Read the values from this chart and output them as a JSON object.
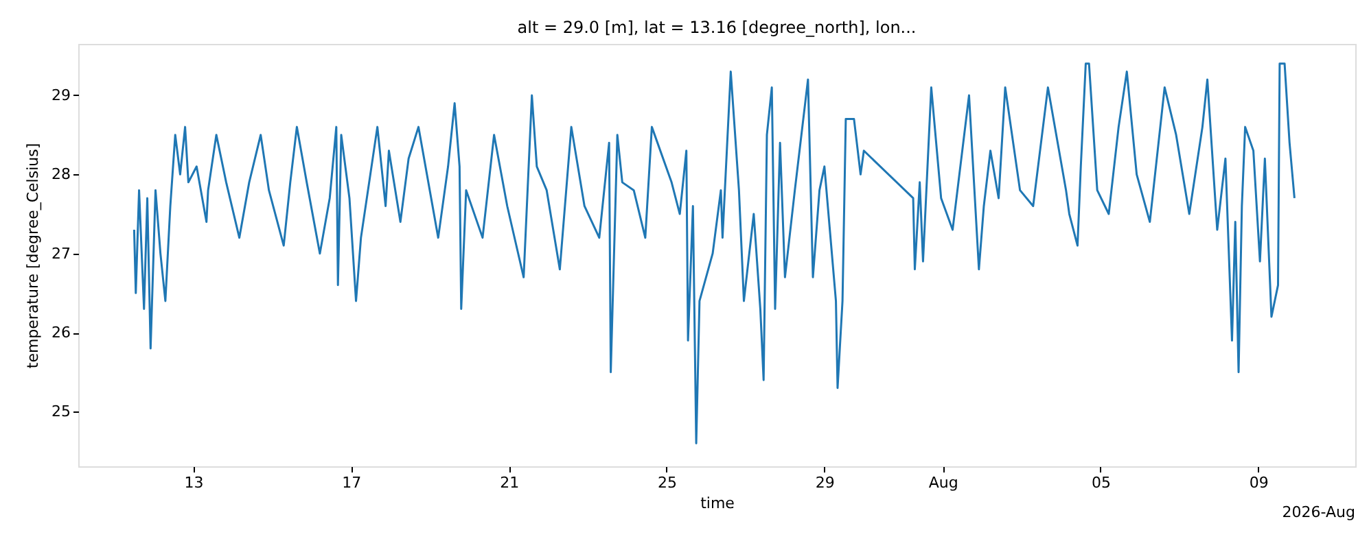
{
  "chart_data": {
    "type": "line",
    "title": "alt = 29.0 [m], lat = 13.16 [degree_north], lon...",
    "xlabel": "time",
    "ylabel": "temperature [degree_Celsius]",
    "x": [
      "2026-07-11T12:00",
      "2026-07-11T13:00",
      "2026-07-11T15:00",
      "2026-07-11T18:00",
      "2026-07-11T20:00",
      "2026-07-11T22:00",
      "2026-07-12T01:00",
      "2026-07-12T04:00",
      "2026-07-12T07:00",
      "2026-07-12T10:00",
      "2026-07-12T13:00",
      "2026-07-12T16:00",
      "2026-07-12T19:00",
      "2026-07-12T21:00",
      "2026-07-13T02:00",
      "2026-07-13T08:00",
      "2026-07-13T09:00",
      "2026-07-13T14:00",
      "2026-07-13T20:00",
      "2026-07-14T04:00",
      "2026-07-14T10:00",
      "2026-07-14T17:00",
      "2026-07-14T22:00",
      "2026-07-15T07:00",
      "2026-07-15T11:00",
      "2026-07-15T15:00",
      "2026-07-15T21:00",
      "2026-07-16T05:00",
      "2026-07-16T11:00",
      "2026-07-16T15:00",
      "2026-07-16T16:00",
      "2026-07-16T18:00",
      "2026-07-16T23:00",
      "2026-07-17T03:00",
      "2026-07-17T06:00",
      "2026-07-17T16:00",
      "2026-07-17T21:00",
      "2026-07-17T23:00",
      "2026-07-18T06:00",
      "2026-07-18T11:00",
      "2026-07-18T17:00",
      "2026-07-19T05:00",
      "2026-07-19T11:00",
      "2026-07-19T15:00",
      "2026-07-19T18:00",
      "2026-07-19T19:00",
      "2026-07-19T22:00",
      "2026-07-20T08:00",
      "2026-07-20T15:00",
      "2026-07-20T23:00",
      "2026-07-21T09:00",
      "2026-07-21T14:00",
      "2026-07-21T17:00",
      "2026-07-21T23:00",
      "2026-07-22T07:00",
      "2026-07-22T14:00",
      "2026-07-22T22:00",
      "2026-07-23T07:00",
      "2026-07-23T13:00",
      "2026-07-23T14:00",
      "2026-07-23T18:00",
      "2026-07-23T21:00",
      "2026-07-24T04:00",
      "2026-07-24T11:00",
      "2026-07-24T15:00",
      "2026-07-25T03:00",
      "2026-07-25T08:00",
      "2026-07-25T12:00",
      "2026-07-25T13:00",
      "2026-07-25T16:00",
      "2026-07-25T18:00",
      "2026-07-25T20:00",
      "2026-07-26T04:00",
      "2026-07-26T09:00",
      "2026-07-26T10:00",
      "2026-07-26T15:00",
      "2026-07-26T20:00",
      "2026-07-26T23:00",
      "2026-07-27T05:00",
      "2026-07-27T09:00",
      "2026-07-27T11:00",
      "2026-07-27T13:00",
      "2026-07-27T16:00",
      "2026-07-27T18:00",
      "2026-07-27T21:00",
      "2026-07-28T00:00",
      "2026-07-28T06:00",
      "2026-07-28T14:00",
      "2026-07-28T17:00",
      "2026-07-28T21:00",
      "2026-07-29T00:00",
      "2026-07-29T07:00",
      "2026-07-29T08:00",
      "2026-07-29T11:00",
      "2026-07-29T13:00",
      "2026-07-29T18:00",
      "2026-07-29T22:00",
      "2026-07-30T00:00",
      "2026-07-31T06:00",
      "2026-07-31T07:00",
      "2026-07-31T10:00",
      "2026-07-31T12:00",
      "2026-07-31T17:00",
      "2026-07-31T23:00",
      "2026-08-01T06:00",
      "2026-08-01T16:00",
      "2026-08-01T22:00",
      "2026-08-02T01:00",
      "2026-08-02T05:00",
      "2026-08-02T10:00",
      "2026-08-02T14:00",
      "2026-08-02T23:00",
      "2026-08-03T07:00",
      "2026-08-03T16:00",
      "2026-08-04T03:00",
      "2026-08-04T05:00",
      "2026-08-04T10:00",
      "2026-08-04T12:00",
      "2026-08-04T15:00",
      "2026-08-04T17:00",
      "2026-08-04T22:00",
      "2026-08-05T05:00",
      "2026-08-05T11:00",
      "2026-08-05T16:00",
      "2026-08-05T22:00",
      "2026-08-06T06:00",
      "2026-08-06T15:00",
      "2026-08-06T22:00",
      "2026-08-07T06:00",
      "2026-08-07T14:00",
      "2026-08-07T17:00",
      "2026-08-07T23:00",
      "2026-08-08T04:00",
      "2026-08-08T08:00",
      "2026-08-08T10:00",
      "2026-08-08T12:00",
      "2026-08-08T14:00",
      "2026-08-08T16:00",
      "2026-08-08T21:00",
      "2026-08-09T01:00",
      "2026-08-09T04:00",
      "2026-08-09T08:00",
      "2026-08-09T12:00",
      "2026-08-09T13:00",
      "2026-08-09T16:00",
      "2026-08-09T19:00",
      "2026-08-09T22:00"
    ],
    "series": [
      {
        "color": "#1f77b4",
        "values": [
          27.3,
          26.5,
          27.8,
          26.3,
          27.7,
          25.8,
          27.8,
          27.0,
          26.4,
          27.6,
          28.5,
          28.0,
          28.6,
          27.9,
          28.1,
          27.4,
          27.8,
          28.5,
          27.9,
          27.2,
          27.9,
          28.5,
          27.8,
          27.1,
          27.9,
          28.6,
          27.9,
          27.0,
          27.7,
          28.6,
          26.6,
          28.5,
          27.7,
          26.4,
          27.2,
          28.6,
          27.6,
          28.3,
          27.4,
          28.2,
          28.6,
          27.2,
          28.1,
          28.9,
          28.1,
          26.3,
          27.8,
          27.2,
          28.5,
          27.6,
          26.7,
          29.0,
          28.1,
          27.8,
          26.8,
          28.6,
          27.6,
          27.2,
          28.4,
          25.5,
          28.5,
          27.9,
          27.8,
          27.2,
          28.6,
          27.9,
          27.5,
          28.3,
          25.9,
          27.6,
          24.6,
          26.4,
          27.0,
          27.8,
          27.2,
          29.3,
          27.8,
          26.4,
          27.5,
          26.3,
          25.4,
          28.5,
          29.1,
          26.3,
          28.4,
          26.7,
          27.8,
          29.2,
          26.7,
          27.8,
          28.1,
          26.4,
          25.3,
          26.4,
          28.7,
          28.7,
          28.0,
          28.3,
          27.7,
          26.8,
          27.9,
          26.9,
          29.1,
          27.7,
          27.3,
          29.0,
          26.8,
          27.6,
          28.3,
          27.7,
          29.1,
          27.8,
          27.6,
          29.1,
          27.8,
          27.5,
          27.1,
          28.1,
          29.4,
          29.4,
          27.8,
          27.5,
          28.6,
          29.3,
          28.0,
          27.4,
          29.1,
          28.5,
          27.5,
          28.6,
          29.2,
          27.3,
          28.2,
          25.9,
          27.4,
          25.5,
          27.6,
          28.6,
          28.3,
          26.9,
          28.2,
          26.2,
          26.6,
          29.4,
          29.4,
          28.4,
          27.7
        ]
      }
    ],
    "xlim": [
      "2026-07-10T02:00",
      "2026-08-11T11:00"
    ],
    "xticks": [
      {
        "value": "2026-07-13",
        "label": "13"
      },
      {
        "value": "2026-07-17",
        "label": "17"
      },
      {
        "value": "2026-07-21",
        "label": "21"
      },
      {
        "value": "2026-07-25",
        "label": "25"
      },
      {
        "value": "2026-07-29",
        "label": "29"
      },
      {
        "value": "2026-08-01",
        "label": "Aug"
      },
      {
        "value": "2026-08-05",
        "label": "05"
      },
      {
        "value": "2026-08-09",
        "label": "09"
      }
    ],
    "ylim": [
      24.31,
      29.65
    ],
    "yticks": [
      25,
      26,
      27,
      28,
      29
    ],
    "annotations": [
      "2026-Aug"
    ]
  }
}
